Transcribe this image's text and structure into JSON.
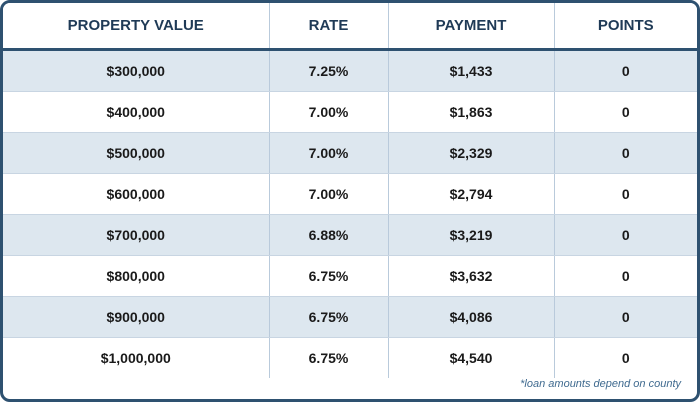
{
  "table": {
    "headers": [
      "PROPERTY VALUE",
      "RATE",
      "PAYMENT",
      "POINTS"
    ],
    "rows": [
      [
        "$300,000",
        "7.25%",
        "$1,433",
        "0"
      ],
      [
        "$400,000",
        "7.00%",
        "$1,863",
        "0"
      ],
      [
        "$500,000",
        "7.00%",
        "$2,329",
        "0"
      ],
      [
        "$600,000",
        "7.00%",
        "$2,794",
        "0"
      ],
      [
        "$700,000",
        "6.88%",
        "$3,219",
        "0"
      ],
      [
        "$800,000",
        "6.75%",
        "$3,632",
        "0"
      ],
      [
        "$900,000",
        "6.75%",
        "$4,086",
        "0"
      ],
      [
        "$1,000,000",
        "6.75%",
        "$4,540",
        "0"
      ]
    ]
  },
  "footnote": "*loan amounts depend on county",
  "colors": {
    "border": "#2e5170",
    "header_text": "#1f3a56",
    "shaded_row": "#dde7ef",
    "footnote_text": "#3f6a8f"
  }
}
